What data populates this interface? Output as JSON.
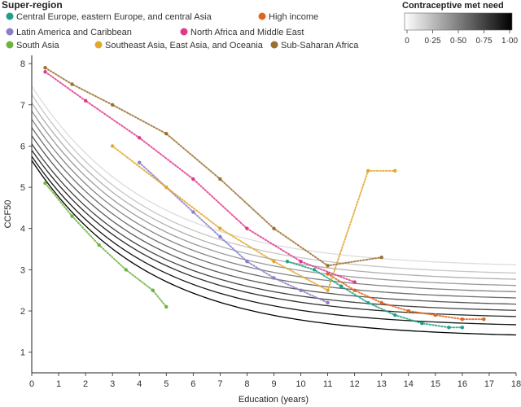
{
  "chart_data": {
    "type": "scatter",
    "xlabel": "Education (years)",
    "ylabel": "CCF50",
    "xlim": [
      0,
      18
    ],
    "ylim": [
      0.5,
      8.2
    ],
    "x_ticks": [
      "0",
      "1",
      "2",
      "3",
      "4",
      "5",
      "6",
      "7",
      "8",
      "9",
      "10",
      "11",
      "12",
      "13",
      "14",
      "15",
      "16",
      "17",
      "18"
    ],
    "y_ticks": [
      "1",
      "2",
      "3",
      "4",
      "5",
      "6",
      "7",
      "8"
    ],
    "legend": {
      "title": "Super-region",
      "placement": "top-left",
      "entries": [
        {
          "label": "Central Europe, eastern Europe, and central Asia",
          "color": "#1fa187"
        },
        {
          "label": "High income",
          "color": "#e0651f"
        },
        {
          "label": "Latin America and Caribbean",
          "color": "#8b7ec8"
        },
        {
          "label": "North Africa and Middle East",
          "color": "#e0388c"
        },
        {
          "label": "South Asia",
          "color": "#6db33f"
        },
        {
          "label": "Southeast Asia, East Asia, and Oceania",
          "color": "#e2a72e"
        },
        {
          "label": "Sub-Saharan Africa",
          "color": "#9a7030"
        }
      ]
    },
    "colorbar": {
      "title": "Contraceptive met need",
      "tick_labels": [
        "0",
        "0·25",
        "0·50",
        "0·75",
        "1·00"
      ],
      "range": [
        0,
        1
      ],
      "colors": [
        "#ffffff",
        "#000000"
      ]
    },
    "fitted_curves": [
      {
        "met_need": 0.0,
        "y0": 7.45,
        "asymptote": 3.05
      },
      {
        "met_need": 0.1,
        "y0": 7.25,
        "asymptote": 2.85
      },
      {
        "met_need": 0.2,
        "y0": 7.05,
        "asymptote": 2.7
      },
      {
        "met_need": 0.3,
        "y0": 6.85,
        "asymptote": 2.55
      },
      {
        "met_need": 0.4,
        "y0": 6.65,
        "asymptote": 2.4
      },
      {
        "met_need": 0.5,
        "y0": 6.45,
        "asymptote": 2.25
      },
      {
        "met_need": 0.6,
        "y0": 6.25,
        "asymptote": 2.1
      },
      {
        "met_need": 0.7,
        "y0": 6.05,
        "asymptote": 1.95
      },
      {
        "met_need": 0.8,
        "y0": 5.9,
        "asymptote": 1.8
      },
      {
        "met_need": 0.9,
        "y0": 5.75,
        "asymptote": 1.6
      },
      {
        "met_need": 1.0,
        "y0": 5.65,
        "asymptote": 1.35
      }
    ],
    "series": [
      {
        "name": "Central Europe, eastern Europe, and central Asia",
        "color": "#1fa187",
        "x": [
          9.5,
          10.5,
          11.5,
          12.5,
          13.5,
          14.5,
          15.5,
          16.0
        ],
        "y": [
          3.2,
          3.0,
          2.6,
          2.2,
          1.9,
          1.7,
          1.6,
          1.6
        ]
      },
      {
        "name": "High income",
        "color": "#e0651f",
        "x": [
          11.0,
          12.0,
          13.0,
          14.0,
          15.0,
          16.0,
          16.8
        ],
        "y": [
          2.9,
          2.5,
          2.2,
          2.0,
          1.9,
          1.8,
          1.8
        ]
      },
      {
        "name": "Latin America and Caribbean",
        "color": "#8b7ec8",
        "x": [
          4.0,
          5.0,
          6.0,
          7.0,
          8.0,
          9.0,
          10.0,
          11.0
        ],
        "y": [
          5.6,
          5.0,
          4.4,
          3.8,
          3.2,
          2.8,
          2.5,
          2.2
        ]
      },
      {
        "name": "North Africa and Middle East",
        "color": "#e0388c",
        "x": [
          0.5,
          2.0,
          4.0,
          6.0,
          8.0,
          10.0,
          12.0
        ],
        "y": [
          7.8,
          7.1,
          6.2,
          5.2,
          4.0,
          3.2,
          2.7
        ]
      },
      {
        "name": "South Asia",
        "color": "#6db33f",
        "x": [
          0.5,
          1.5,
          2.5,
          3.5,
          4.5,
          5.0
        ],
        "y": [
          5.1,
          4.3,
          3.6,
          3.0,
          2.5,
          2.1
        ]
      },
      {
        "name": "Southeast Asia, East Asia, and Oceania",
        "color": "#e2a72e",
        "x": [
          3.0,
          5.0,
          7.0,
          9.0,
          11.0,
          12.5,
          13.5
        ],
        "y": [
          6.0,
          5.0,
          4.0,
          3.2,
          2.5,
          5.4,
          5.4
        ]
      },
      {
        "name": "Sub-Saharan Africa",
        "color": "#9a7030",
        "x": [
          0.5,
          1.5,
          3.0,
          5.0,
          7.0,
          9.0,
          11.0,
          13.0
        ],
        "y": [
          7.9,
          7.5,
          7.0,
          6.3,
          5.2,
          4.0,
          3.1,
          3.3
        ]
      }
    ]
  }
}
